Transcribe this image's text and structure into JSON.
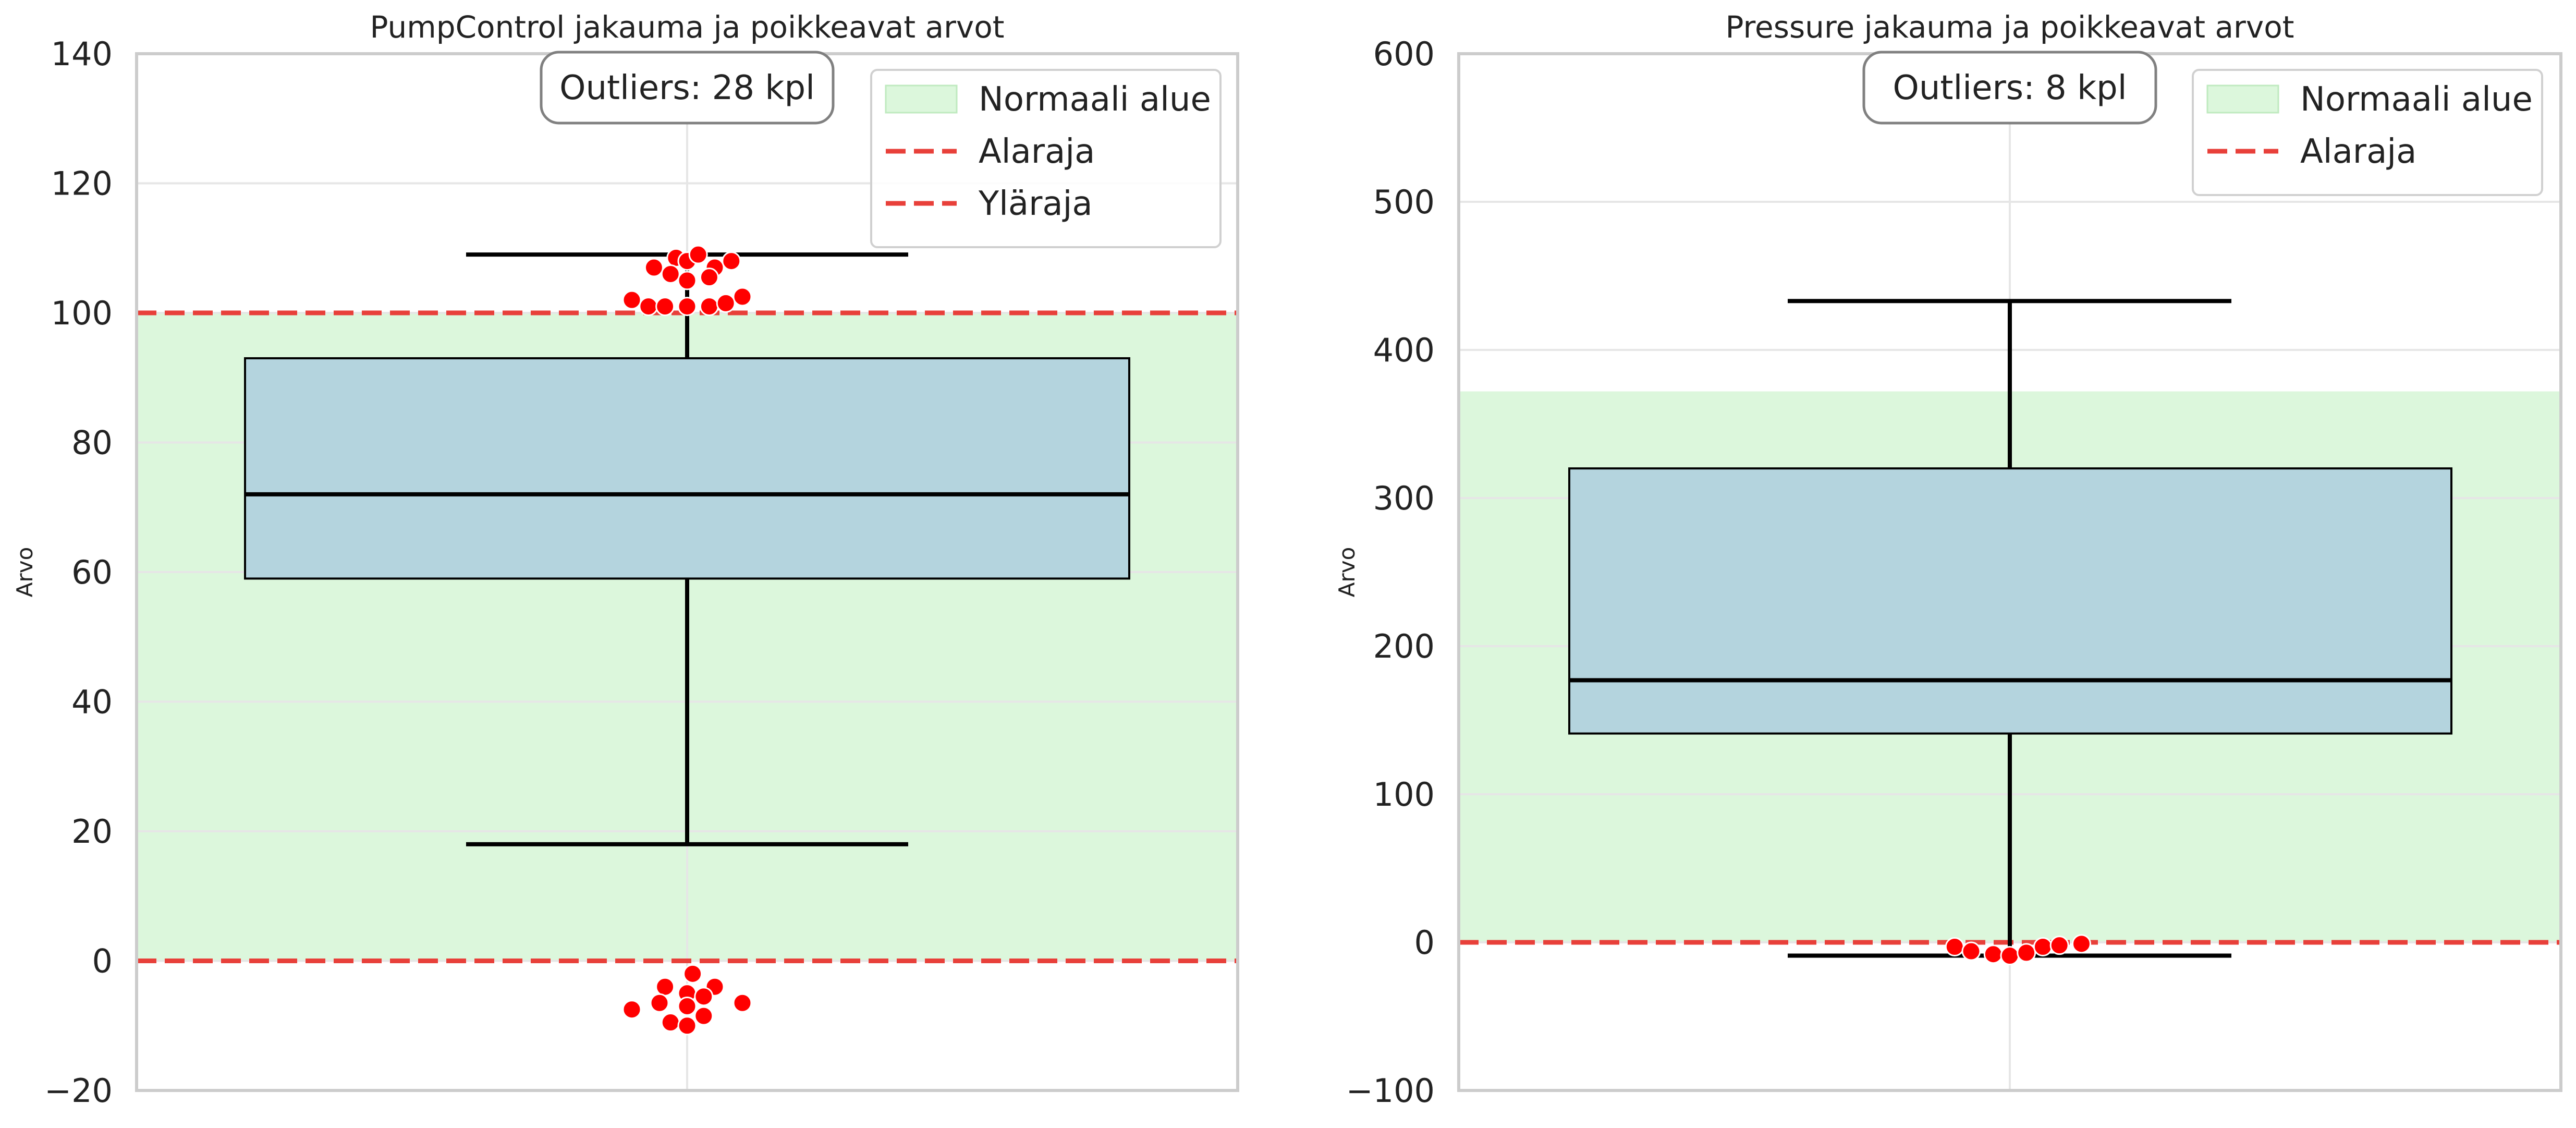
{
  "chart_data": [
    {
      "type": "box",
      "title": "PumpControl jakauma ja poikkeavat arvot",
      "xlabel": "",
      "ylabel": "Arvo",
      "ylim": [
        -20,
        140
      ],
      "yticks": [
        -20,
        0,
        20,
        40,
        60,
        80,
        100,
        120,
        140
      ],
      "ytick_labels": [
        "−20",
        "0",
        "20",
        "40",
        "60",
        "80",
        "100",
        "120",
        "140"
      ],
      "grid": true,
      "box": {
        "whisker_low": 18,
        "q1": 59,
        "median": 72,
        "q3": 93,
        "whisker_high": 109
      },
      "normal_range": [
        0,
        100
      ],
      "lower_limit": 0,
      "upper_limit": 100,
      "outliers": [
        {
          "x": -0.06,
          "y": 107
        },
        {
          "x": -0.02,
          "y": 108.5
        },
        {
          "x": 0.0,
          "y": 108
        },
        {
          "x": 0.02,
          "y": 109
        },
        {
          "x": 0.05,
          "y": 107
        },
        {
          "x": 0.08,
          "y": 108
        },
        {
          "x": -0.03,
          "y": 106
        },
        {
          "x": 0.0,
          "y": 105
        },
        {
          "x": 0.04,
          "y": 105.5
        },
        {
          "x": -0.1,
          "y": 102
        },
        {
          "x": -0.07,
          "y": 101
        },
        {
          "x": -0.04,
          "y": 101
        },
        {
          "x": 0.0,
          "y": 101
        },
        {
          "x": 0.04,
          "y": 101
        },
        {
          "x": 0.07,
          "y": 101.5
        },
        {
          "x": 0.1,
          "y": 102.5
        },
        {
          "x": 0.01,
          "y": -2
        },
        {
          "x": -0.04,
          "y": -4
        },
        {
          "x": 0.05,
          "y": -4
        },
        {
          "x": 0.0,
          "y": -5
        },
        {
          "x": 0.03,
          "y": -5.5
        },
        {
          "x": -0.1,
          "y": -7.5
        },
        {
          "x": -0.05,
          "y": -6.5
        },
        {
          "x": 0.0,
          "y": -7
        },
        {
          "x": 0.1,
          "y": -6.5
        },
        {
          "x": -0.03,
          "y": -9.5
        },
        {
          "x": 0.0,
          "y": -10
        },
        {
          "x": 0.03,
          "y": -8.5
        }
      ],
      "outlier_badge": "Outliers: 28 kpl",
      "legend": {
        "placement": "top-right",
        "entries": [
          {
            "label": "Normaali alue",
            "kind": "patch"
          },
          {
            "label": "Alaraja",
            "kind": "line"
          },
          {
            "label": "Yläraja",
            "kind": "line"
          }
        ]
      }
    },
    {
      "type": "box",
      "title": "Pressure jakauma ja poikkeavat arvot",
      "xlabel": "",
      "ylabel": "Arvo",
      "ylim": [
        -100,
        600
      ],
      "yticks": [
        -100,
        0,
        100,
        200,
        300,
        400,
        500,
        600
      ],
      "ytick_labels": [
        "−100",
        "0",
        "100",
        "200",
        "300",
        "400",
        "500",
        "600"
      ],
      "grid": true,
      "box": {
        "whisker_low": -9,
        "q1": 141,
        "median": 177,
        "q3": 320,
        "whisker_high": 433
      },
      "normal_range": [
        0,
        372
      ],
      "lower_limit": 0,
      "outliers": [
        {
          "x": -0.1,
          "y": -3
        },
        {
          "x": -0.07,
          "y": -6
        },
        {
          "x": -0.03,
          "y": -8
        },
        {
          "x": 0.0,
          "y": -9
        },
        {
          "x": 0.03,
          "y": -7
        },
        {
          "x": 0.06,
          "y": -3
        },
        {
          "x": 0.09,
          "y": -2
        },
        {
          "x": 0.13,
          "y": -1
        }
      ],
      "outlier_badge": "Outliers: 8 kpl",
      "legend": {
        "placement": "top-right",
        "entries": [
          {
            "label": "Normaali alue",
            "kind": "patch"
          },
          {
            "label": "Alaraja",
            "kind": "line"
          }
        ]
      }
    }
  ],
  "colors": {
    "normal_fill": "#dcf7dc",
    "limit_line": "#e8403a",
    "box_fill": "#b4d4de",
    "box_edge": "#000000",
    "outlier": "#ff0000",
    "axis_frame": "#cccccc",
    "grid": "#e6e6e6",
    "text": "#222222"
  }
}
